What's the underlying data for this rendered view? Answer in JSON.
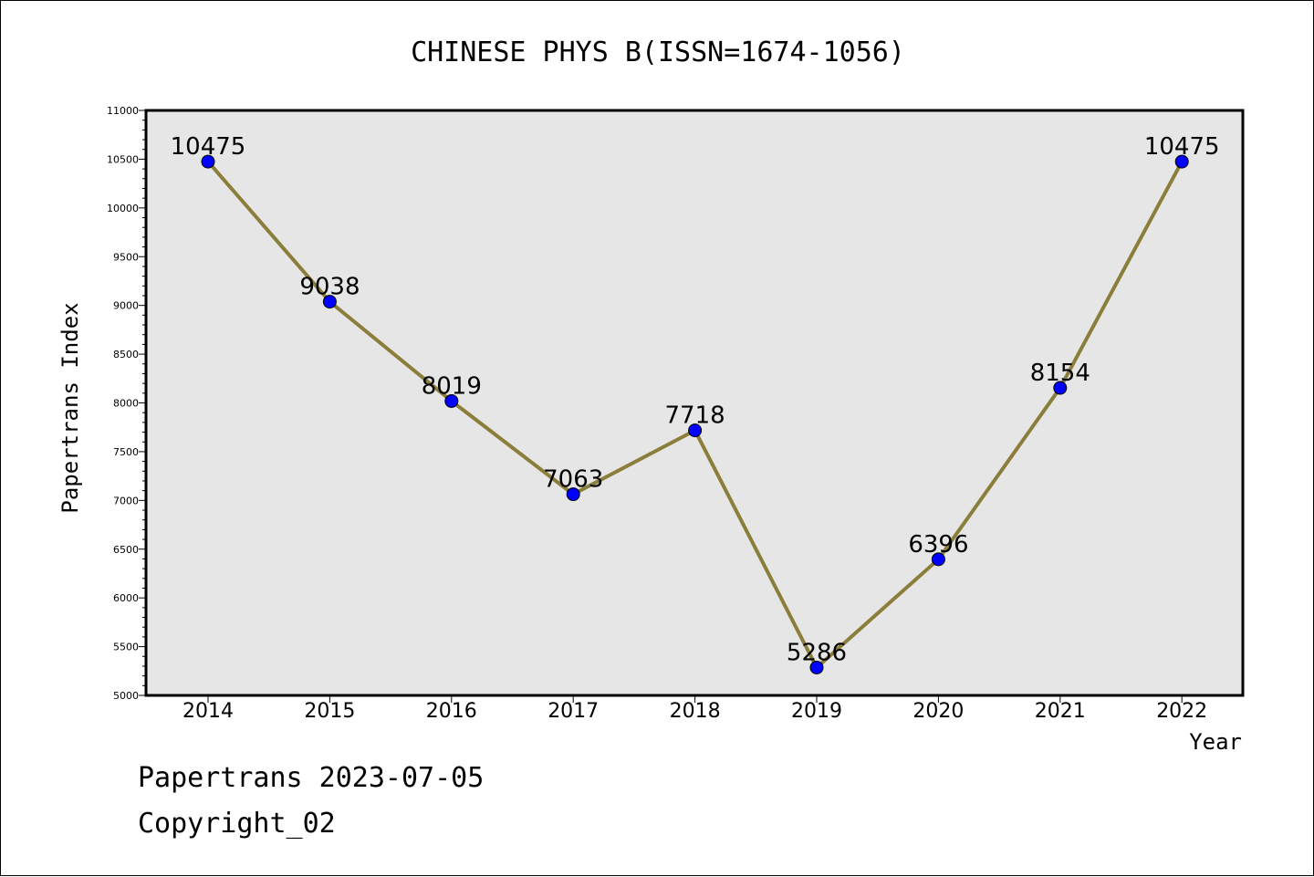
{
  "chart_data": {
    "type": "line",
    "title": "CHINESE PHYS B(ISSN=1674-1056)",
    "xlabel": "Year",
    "ylabel": "Papertrans Index",
    "categories": [
      "2014",
      "2015",
      "2016",
      "2017",
      "2018",
      "2019",
      "2020",
      "2021",
      "2022"
    ],
    "series": [
      {
        "values": [
          10475,
          9038,
          8019,
          7063,
          7718,
          5286,
          6396,
          8154,
          10475
        ]
      }
    ],
    "ylim": [
      5000,
      11000
    ],
    "yticks": [
      5000,
      5500,
      6000,
      6500,
      7000,
      7500,
      8000,
      8500,
      9000,
      9500,
      10000,
      10500,
      11000
    ],
    "grid": false,
    "colors": {
      "line": "#8b7d3a",
      "marker": "#0000ff",
      "plot_background": "#e6e6e6"
    }
  },
  "footer": {
    "line1": "Papertrans 2023-07-05",
    "line2": "Copyright_02"
  }
}
